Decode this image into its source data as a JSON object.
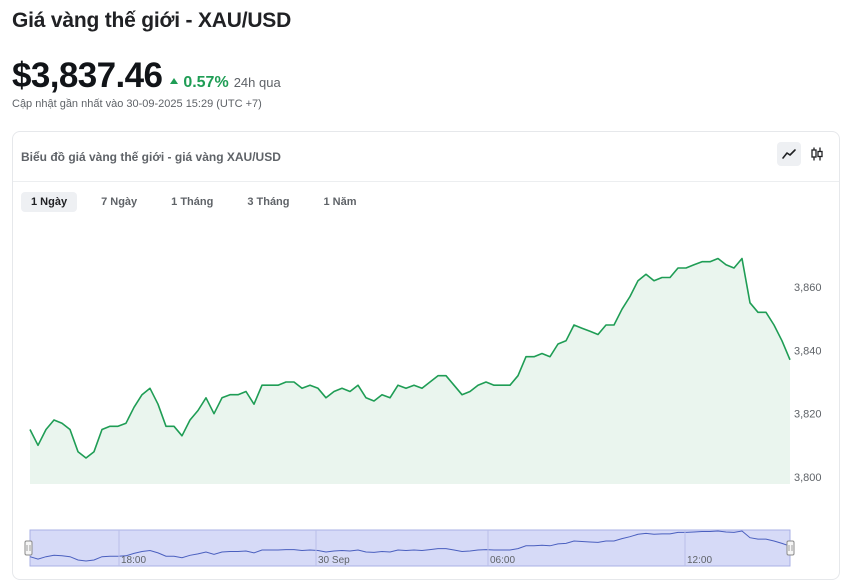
{
  "page": {
    "title": "Giá vàng thế giới - XAU/USD",
    "price": "$3,837.46",
    "change_pct": "0.57%",
    "change_period": "24h qua",
    "updated": "Cập nhật gần nhất vào 30-09-2025 15:29 (UTC +7)"
  },
  "card": {
    "title": "Biểu đồ giá vàng thế giới - giá vàng XAU/USD",
    "view_icons": [
      "line-chart-icon",
      "candlestick-icon"
    ],
    "ranges": [
      "1 Ngày",
      "7 Ngày",
      "1 Tháng",
      "3 Tháng",
      "1 Năm"
    ],
    "active_range": "1 Ngày"
  },
  "colors": {
    "line": "#1f9d55",
    "area": "#eaf5ee",
    "up": "#1f9d55",
    "navigator_fill": "#d6daf7",
    "navigator_border": "#a9b0e6"
  },
  "chart_data": {
    "type": "area",
    "title": "",
    "xlabel": "",
    "ylabel": "",
    "ylim": [
      3798,
      3872
    ],
    "yticks": [
      "3,800",
      "3,820",
      "3,840",
      "3,860"
    ],
    "series": [
      {
        "values": [
          3815,
          3810,
          3815,
          3818,
          3817,
          3815,
          3808,
          3806,
          3808,
          3815,
          3816,
          3816,
          3817,
          3822,
          3826,
          3828,
          3823,
          3816,
          3816,
          3813,
          3818,
          3821,
          3825,
          3820,
          3825,
          3826,
          3826,
          3827,
          3823,
          3829,
          3829,
          3829,
          3830,
          3830,
          3828,
          3829,
          3828,
          3825,
          3827,
          3828,
          3827,
          3829,
          3825,
          3824,
          3826,
          3825,
          3829,
          3828,
          3829,
          3828,
          3830,
          3832,
          3832,
          3829,
          3826,
          3827,
          3829,
          3830,
          3829,
          3829,
          3829,
          3832,
          3838,
          3838,
          3839,
          3838,
          3842,
          3843,
          3848,
          3847,
          3846,
          3845,
          3848,
          3848,
          3853,
          3857,
          3862,
          3864,
          3862,
          3863,
          3863,
          3866,
          3866,
          3867,
          3868,
          3868,
          3869,
          3867,
          3866,
          3869,
          3855,
          3852,
          3852,
          3848,
          3843,
          3837
        ]
      }
    ]
  },
  "navigator": {
    "labels": [
      "18:00",
      "30 Sep",
      "06:00",
      "12:00"
    ]
  }
}
